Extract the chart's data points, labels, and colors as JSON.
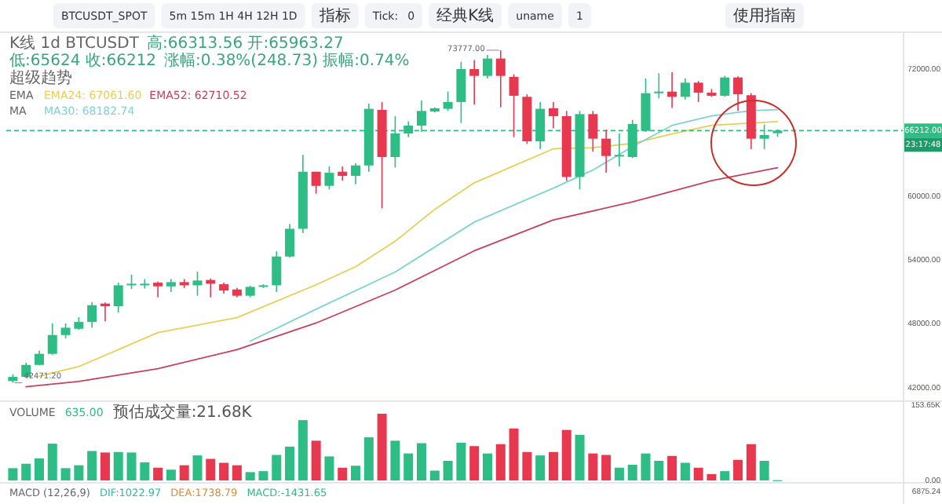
{
  "chart_data": [
    {
      "type": "candlestick",
      "categories": [
        null,
        null,
        null,
        null,
        null,
        null,
        null,
        null,
        null,
        null,
        null,
        null,
        null,
        null,
        null,
        null,
        null,
        null,
        null,
        null,
        null,
        null,
        null,
        null,
        null,
        null,
        null,
        null,
        null,
        null,
        null,
        null,
        null,
        null,
        null,
        null,
        null,
        null,
        null,
        null,
        null,
        null,
        null,
        null,
        null,
        null,
        null,
        null,
        null,
        null,
        null,
        null,
        null,
        null,
        null,
        null,
        null,
        null,
        null,
        null,
        null,
        null,
        null,
        null,
        null,
        null,
        null,
        null
      ],
      "ohlc": [
        [
          42640,
          43280,
          42471.2,
          43030
        ],
        [
          43030,
          44360,
          42930,
          44160
        ],
        [
          44160,
          45490,
          44110,
          45200
        ],
        [
          45200,
          48060,
          45100,
          46970
        ],
        [
          46970,
          48060,
          46670,
          47660
        ],
        [
          47560,
          48650,
          47460,
          48200
        ],
        [
          48200,
          50080,
          47660,
          49780
        ],
        [
          49930,
          50030,
          48250,
          49680
        ],
        [
          49680,
          51900,
          49090,
          51650
        ],
        [
          51650,
          52640,
          51300,
          51800
        ],
        [
          51700,
          52240,
          51350,
          51800
        ],
        [
          51900,
          52000,
          50520,
          51550
        ],
        [
          51550,
          52240,
          51010,
          51950
        ],
        [
          51950,
          52240,
          51400,
          51650
        ],
        [
          51650,
          52930,
          50670,
          52100
        ],
        [
          52150,
          52290,
          50520,
          51800
        ],
        [
          51750,
          51900,
          50870,
          51160
        ],
        [
          51260,
          51400,
          50520,
          50670
        ],
        [
          50670,
          51600,
          50520,
          51500
        ],
        [
          51500,
          51750,
          51400,
          51650
        ],
        [
          51650,
          54850,
          51010,
          54360
        ],
        [
          54360,
          57420,
          54260,
          56970
        ],
        [
          56970,
          63920,
          56580,
          62340
        ],
        [
          62340,
          62340,
          60270,
          61010
        ],
        [
          61010,
          62830,
          60670,
          62240
        ],
        [
          62340,
          62830,
          61500,
          61950
        ],
        [
          61950,
          63130,
          61160,
          62930
        ],
        [
          62930,
          68750,
          62340,
          68260
        ],
        [
          68160,
          68900,
          58890,
          63720
        ],
        [
          63720,
          67570,
          62740,
          65940
        ],
        [
          65940,
          67070,
          65600,
          66680
        ],
        [
          66680,
          69040,
          66090,
          68060
        ],
        [
          68010,
          68400,
          67910,
          68310
        ],
        [
          68260,
          69880,
          68060,
          68900
        ],
        [
          68900,
          72690,
          66930,
          72000
        ],
        [
          72000,
          72840,
          68650,
          71360
        ],
        [
          71360,
          73330,
          71110,
          72990
        ],
        [
          72990,
          73777,
          68400,
          71360
        ],
        [
          71260,
          71510,
          65600,
          69490
        ],
        [
          69390,
          69630,
          64950,
          65200
        ],
        [
          65200,
          68900,
          64460,
          68260
        ],
        [
          68310,
          68900,
          66430,
          67570
        ],
        [
          67570,
          68060,
          61460,
          61850
        ],
        [
          61850,
          68060,
          60670,
          67760
        ],
        [
          67760,
          68060,
          64220,
          65450
        ],
        [
          65450,
          66290,
          62240,
          63820
        ],
        [
          63820,
          65940,
          62830,
          63920
        ],
        [
          63720,
          67220,
          63620,
          66830
        ],
        [
          66190,
          71110,
          66090,
          69730
        ],
        [
          69730,
          71610,
          69240,
          69880
        ],
        [
          69880,
          71700,
          68350,
          69390
        ],
        [
          69390,
          71110,
          69140,
          70720
        ],
        [
          70720,
          70870,
          68900,
          69780
        ],
        [
          69780,
          70130,
          69390,
          69490
        ],
        [
          69490,
          71360,
          69390,
          71210
        ],
        [
          71210,
          71310,
          68060,
          69630
        ],
        [
          69540,
          69730,
          64460,
          65450
        ],
        [
          65450,
          66780,
          64460,
          65790
        ],
        [
          65963.27,
          66313.56,
          65624,
          66212
        ],
        null,
        null,
        null,
        null,
        null,
        null,
        null,
        null,
        null
      ],
      "colors": [
        "#2dbd85",
        "#2dbd85",
        "#2dbd85",
        "#2dbd85",
        "#2dbd85",
        "#2dbd85",
        "#2dbd85",
        "#e8384f",
        "#2dbd85",
        "#2dbd85",
        "#2dbd85",
        "#e8384f",
        "#2dbd85",
        "#e8384f",
        "#2dbd85",
        "#e8384f",
        "#e8384f",
        "#e8384f",
        "#2dbd85",
        "#2dbd85",
        "#2dbd85",
        "#2dbd85",
        "#2dbd85",
        "#e8384f",
        "#2dbd85",
        "#e8384f",
        "#2dbd85",
        "#2dbd85",
        "#e8384f",
        "#2dbd85",
        "#2dbd85",
        "#2dbd85",
        "#2dbd85",
        "#2dbd85",
        "#2dbd85",
        "#e8384f",
        "#2dbd85",
        "#e8384f",
        "#e8384f",
        "#e8384f",
        "#2dbd85",
        "#e8384f",
        "#e8384f",
        "#2dbd85",
        "#e8384f",
        "#e8384f",
        "#2dbd85",
        "#2dbd85",
        "#2dbd85",
        "#2dbd85",
        "#e8384f",
        "#2dbd85",
        "#e8384f",
        "#e8384f",
        "#2dbd85",
        "#e8384f",
        "#e8384f",
        "#2dbd85",
        "#2dbd85",
        null,
        null,
        null,
        null,
        null,
        null,
        null,
        null,
        null
      ],
      "ylim": [
        40820,
        75250
      ],
      "yticks": [
        {
          "value": 42000,
          "label": "42000.00"
        },
        {
          "value": 48000,
          "label": "48000.00"
        },
        {
          "value": 54000,
          "label": "54000.00"
        },
        {
          "value": 60000,
          "label": "60000.00"
        },
        {
          "value": 72000,
          "label": "72000.00"
        }
      ],
      "tick_labels": "y",
      "legend": "top left",
      "series": [
        {
          "name": "EMA24: 67061.60",
          "type": "line",
          "color": "#e6cf55",
          "values": [
            null,
            null,
            43100,
            null,
            null,
            44000,
            null,
            null,
            null,
            null,
            null,
            47200,
            null,
            null,
            null,
            null,
            null,
            48600,
            null,
            null,
            null,
            null,
            null,
            51700,
            null,
            null,
            53400,
            null,
            null,
            55800,
            null,
            null,
            58800,
            null,
            null,
            61300,
            null,
            null,
            null,
            null,
            null,
            64500,
            null,
            null,
            64600,
            null,
            null,
            65000,
            null,
            null,
            65900,
            null,
            null,
            66700,
            null,
            null,
            null,
            null,
            67060,
            null,
            null,
            null,
            null,
            null,
            null,
            null,
            null,
            null
          ]
        },
        {
          "name": "EMA52: 62710.52",
          "type": "line",
          "color": "#c8405e",
          "values": [
            null,
            42100,
            null,
            null,
            null,
            42600,
            null,
            null,
            null,
            null,
            null,
            43800,
            null,
            null,
            null,
            null,
            null,
            45600,
            null,
            null,
            null,
            null,
            null,
            48100,
            null,
            null,
            null,
            null,
            null,
            51200,
            null,
            null,
            null,
            null,
            null,
            54900,
            null,
            null,
            null,
            null,
            null,
            57800,
            null,
            null,
            null,
            null,
            null,
            59500,
            null,
            null,
            null,
            null,
            null,
            61500,
            null,
            null,
            null,
            null,
            62710,
            null,
            null,
            null,
            null,
            null,
            null,
            null,
            null,
            null
          ]
        },
        {
          "name": "MA30: 68182.74",
          "type": "line",
          "color": "#7fd3cf",
          "values": [
            null,
            null,
            null,
            null,
            null,
            null,
            null,
            null,
            null,
            null,
            null,
            null,
            null,
            null,
            null,
            null,
            null,
            null,
            46400,
            null,
            null,
            null,
            null,
            49400,
            null,
            null,
            null,
            null,
            null,
            52900,
            null,
            null,
            null,
            null,
            null,
            57600,
            null,
            null,
            null,
            null,
            null,
            60800,
            null,
            null,
            62500,
            null,
            null,
            64700,
            null,
            null,
            66700,
            null,
            null,
            67600,
            null,
            null,
            68100,
            null,
            68180,
            null,
            null,
            null,
            null,
            null,
            null,
            null,
            null,
            null
          ]
        }
      ],
      "ref_lines": [
        {
          "axis": "y",
          "value": 66212,
          "label": "66212.00",
          "color": "#2dbd85",
          "line_style": "dashed"
        }
      ],
      "annotations": [
        "BTCUSDT_SPOT",
        "5m 15m 1H 4H 12H 1D",
        "指标",
        "Tick:",
        "0",
        "经典K线",
        "uname",
        "1",
        "使用指南",
        "K线 1d BTCUSDT",
        "高:66313.56 开:65963.27",
        "低:65624 收:66212",
        "涨幅:0.38%(248.73) 振幅:0.74%",
        "超级趋势",
        "EMA",
        "MA",
        "73777.00",
        "42471.20",
        "23:17:48"
      ]
    },
    {
      "type": "bar",
      "categories": [
        null,
        null,
        null,
        null,
        null,
        null,
        null,
        null,
        null,
        null,
        null,
        null,
        null,
        null,
        null,
        null,
        null,
        null,
        null,
        null,
        null,
        null,
        null,
        null,
        null,
        null,
        null,
        null,
        null,
        null,
        null,
        null,
        null,
        null,
        null,
        null,
        null,
        null,
        null,
        null,
        null,
        null,
        null,
        null,
        null,
        null,
        null,
        null,
        null,
        null,
        null,
        null,
        null,
        null,
        null,
        null,
        null,
        null,
        null,
        null,
        null,
        null,
        null,
        null,
        null,
        null,
        null,
        null
      ],
      "values": [
        25000,
        34000,
        45000,
        75000,
        25000,
        31000,
        60000,
        57000,
        58000,
        57000,
        37000,
        26000,
        22000,
        31000,
        51000,
        44000,
        36000,
        31000,
        17000,
        19000,
        52000,
        69000,
        123000,
        81000,
        49000,
        26000,
        30000,
        88000,
        136000,
        81000,
        55000,
        76000,
        20000,
        40000,
        77000,
        70000,
        55000,
        74000,
        106000,
        58000,
        51000,
        58000,
        103000,
        93000,
        55000,
        52000,
        26000,
        32000,
        55000,
        40000,
        50000,
        36000,
        26000,
        13000,
        19000,
        42000,
        74000,
        40000,
        635,
        null,
        null,
        null,
        null,
        null,
        null,
        null,
        null,
        null
      ],
      "colors": [
        "#2dbd85",
        "#2dbd85",
        "#2dbd85",
        "#2dbd85",
        "#2dbd85",
        "#2dbd85",
        "#2dbd85",
        "#e8384f",
        "#2dbd85",
        "#2dbd85",
        "#2dbd85",
        "#e8384f",
        "#2dbd85",
        "#e8384f",
        "#2dbd85",
        "#e8384f",
        "#e8384f",
        "#e8384f",
        "#2dbd85",
        "#2dbd85",
        "#2dbd85",
        "#2dbd85",
        "#2dbd85",
        "#e8384f",
        "#2dbd85",
        "#e8384f",
        "#2dbd85",
        "#2dbd85",
        "#e8384f",
        "#2dbd85",
        "#2dbd85",
        "#2dbd85",
        "#2dbd85",
        "#2dbd85",
        "#2dbd85",
        "#e8384f",
        "#2dbd85",
        "#e8384f",
        "#e8384f",
        "#e8384f",
        "#2dbd85",
        "#e8384f",
        "#e8384f",
        "#2dbd85",
        "#e8384f",
        "#e8384f",
        "#2dbd85",
        "#2dbd85",
        "#2dbd85",
        "#2dbd85",
        "#e8384f",
        "#2dbd85",
        "#e8384f",
        "#e8384f",
        "#2dbd85",
        "#e8384f",
        "#e8384f",
        "#2dbd85",
        "#2dbd85",
        null,
        null,
        null,
        null,
        null,
        null,
        null,
        null,
        null
      ],
      "ylim": [
        0,
        153650
      ],
      "yticks": [
        {
          "value": 0,
          "label": "0.00"
        },
        {
          "value": 153650,
          "label": "153.65K"
        }
      ],
      "tick_labels": "y",
      "annotations": [
        "VOLUME",
        "635.00",
        "预估成交量:21.68K",
        "MACD (12,26,9)",
        "DIF:1022.97",
        "DEA:1738.79",
        "MACD:-1431.65",
        "6875.24"
      ]
    }
  ]
}
